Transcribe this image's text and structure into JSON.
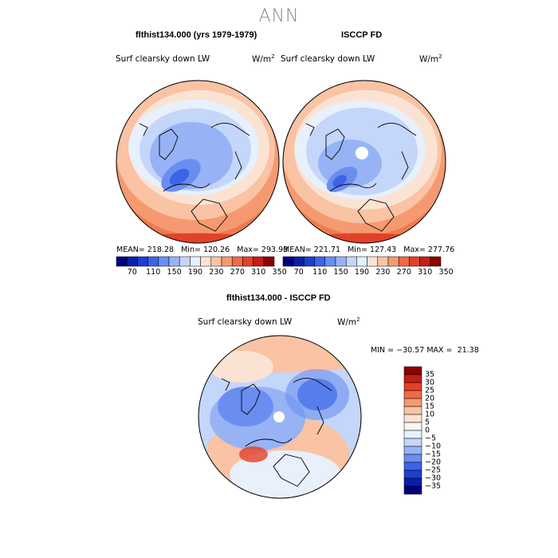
{
  "title": "ANN",
  "panels": [
    {
      "title": "flthist134.000 (yrs 1979-1979)",
      "variable": "Surf clearsky down LW",
      "units": "W/m",
      "units_exp": "2",
      "stats": {
        "mean_label": "MEAN=",
        "mean": "218.28",
        "min_label": "Min=",
        "min": "120.26",
        "max_label": "Max=",
        "max": "293.93"
      },
      "colorbar": {
        "ticks": [
          "70",
          "110",
          "150",
          "190",
          "230",
          "270",
          "310",
          "350"
        ],
        "colors": [
          "#000080",
          "#0a1fa6",
          "#1c3fd0",
          "#3b64e8",
          "#6a8ef0",
          "#97b3f5",
          "#c4d6f9",
          "#e8f0fc",
          "#fbe3d3",
          "#f9c3a4",
          "#f59a70",
          "#f06a46",
          "#e2412a",
          "#c41e16",
          "#8c0000"
        ]
      }
    },
    {
      "title": "ISCCP FD",
      "variable": "Surf clearsky down LW",
      "units": "W/m",
      "units_exp": "2",
      "stats": {
        "mean_label": "MEAN=",
        "mean": "221.71",
        "min_label": "Min=",
        "min": "127.43",
        "max_label": "Max=",
        "max": "277.76"
      },
      "colorbar": {
        "ticks": [
          "70",
          "110",
          "150",
          "190",
          "230",
          "270",
          "310",
          "350"
        ],
        "colors": [
          "#000080",
          "#0a1fa6",
          "#1c3fd0",
          "#3b64e8",
          "#6a8ef0",
          "#97b3f5",
          "#c4d6f9",
          "#e8f0fc",
          "#fbe3d3",
          "#f9c3a4",
          "#f59a70",
          "#f06a46",
          "#e2412a",
          "#c41e16",
          "#8c0000"
        ]
      }
    }
  ],
  "difference": {
    "title": "flthist134.000 - ISCCP FD",
    "variable": "Surf clearsky down LW",
    "units": "W/m",
    "units_exp": "2",
    "minmax": {
      "min_label": "MIN =",
      "min": "−30.57",
      "max_label": "MAX =",
      "max": "21.38"
    },
    "colorbar": {
      "ticks": [
        "35",
        "30",
        "25",
        "20",
        "15",
        "10",
        "5",
        "0",
        "−5",
        "−10",
        "−15",
        "−20",
        "−25",
        "−30",
        "−35"
      ],
      "colors": [
        "#8c0000",
        "#c41e16",
        "#e2412a",
        "#f06a46",
        "#f59a70",
        "#f9c3a4",
        "#fbe3d3",
        "#fdf4ec",
        "#e8f0fc",
        "#c4d6f9",
        "#97b3f5",
        "#6a8ef0",
        "#3b64e8",
        "#1c3fd0",
        "#0a1fa6",
        "#000080"
      ]
    }
  }
}
